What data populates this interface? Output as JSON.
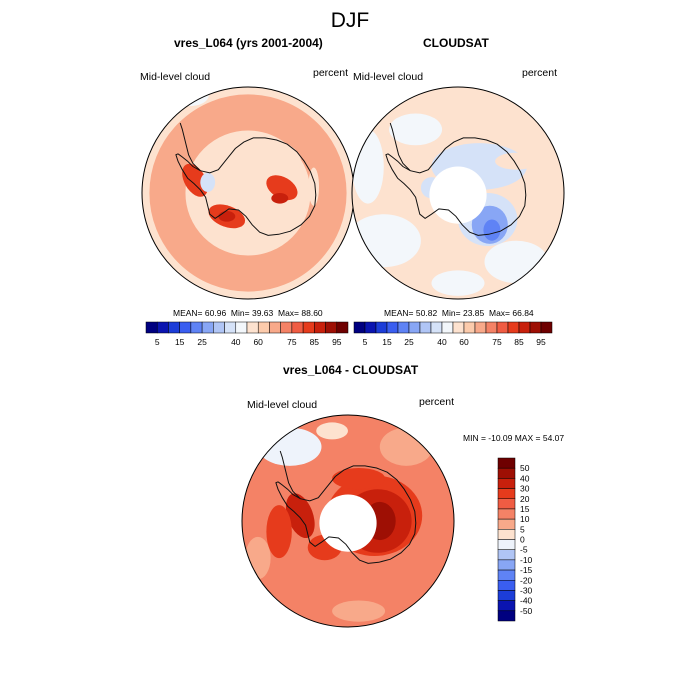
{
  "title": "DJF",
  "colors": {
    "outline": "#000000",
    "coast": "#111111",
    "hole": "#ffffff"
  },
  "panels": [
    {
      "id": "model",
      "title": "vres_L064 (yrs 2001-2004)",
      "left_label": "Mid-level cloud",
      "right_label": "percent",
      "stats": {
        "mean_label": "MEAN=",
        "mean": "60.96",
        "min_label": "Min=",
        "min": "39.63",
        "max_label": "Max=",
        "max": "88.60"
      }
    },
    {
      "id": "obs",
      "title": "CLOUDSAT",
      "left_label": "Mid-level cloud",
      "right_label": "percent",
      "stats": {
        "mean_label": "MEAN=",
        "mean": "50.82",
        "min_label": "Min=",
        "min": "23.85",
        "max_label": "Max=",
        "max": "66.84"
      }
    },
    {
      "id": "diff",
      "title": "vres_L064 - CLOUDSAT",
      "left_label": "Mid-level cloud",
      "right_label": "percent",
      "minmax_text": "MIN = -10.09 MAX =  54.07"
    }
  ],
  "chart_data": [
    {
      "type": "heatmap",
      "projection": "south polar stereographic",
      "title": "vres_L064 (yrs 2001-2004)",
      "variable": "Mid-level cloud",
      "units": "percent",
      "colorbar": {
        "levels": [
          5,
          10,
          15,
          20,
          25,
          30,
          35,
          40,
          50,
          60,
          65,
          70,
          75,
          80,
          85,
          90,
          95
        ],
        "tick_labels": [
          "5",
          "15",
          "25",
          "40",
          "60",
          "75",
          "85",
          "95"
        ],
        "colors": [
          "#000080",
          "#0a14b0",
          "#1c3dd8",
          "#3a5ef0",
          "#5f83f5",
          "#88a6f5",
          "#b0c5f5",
          "#d5e2f8",
          "#f3f7fb",
          "#fde2cf",
          "#fccbac",
          "#f8a98a",
          "#f48266",
          "#f05c43",
          "#e63b1c",
          "#c8200c",
          "#9e0f04",
          "#6e0000"
        ]
      },
      "summary": {
        "mean": 60.96,
        "min": 39.63,
        "max": 88.6
      },
      "pattern": "background 50-60 percent over ocean and continent; 65-75 percent ring around 60S; maxima 80-88 percent near Antarctic Peninsula, Weddell Sea and Dronning Maud Land; 35-40 percent patch over Bellingshausen coast"
    },
    {
      "type": "heatmap",
      "projection": "south polar stereographic",
      "title": "CLOUDSAT",
      "variable": "Mid-level cloud",
      "units": "percent",
      "colorbar": {
        "levels": [
          5,
          10,
          15,
          20,
          25,
          30,
          35,
          40,
          50,
          60,
          65,
          70,
          75,
          80,
          85,
          90,
          95
        ],
        "tick_labels": [
          "5",
          "15",
          "25",
          "40",
          "60",
          "75",
          "85",
          "95"
        ],
        "colors": [
          "#000080",
          "#0a14b0",
          "#1c3dd8",
          "#3a5ef0",
          "#5f83f5",
          "#88a6f5",
          "#b0c5f5",
          "#d5e2f8",
          "#f3f7fb",
          "#fde2cf",
          "#fccbac",
          "#f8a98a",
          "#f48266",
          "#f05c43",
          "#e63b1c",
          "#c8200c",
          "#9e0f04",
          "#6e0000"
        ]
      },
      "summary": {
        "mean": 50.82,
        "min": 23.85,
        "max": 66.84
      },
      "pattern": "mostly 40-60 percent; 30-40 percent over East Antarctica margin near 90E-120E and around the pole hole; no data poleward of about 82S"
    },
    {
      "type": "heatmap",
      "projection": "south polar stereographic",
      "title": "vres_L064 - CLOUDSAT",
      "variable": "Mid-level cloud",
      "units": "percent",
      "colorbar": {
        "levels": [
          -50,
          -40,
          -30,
          -20,
          -15,
          -10,
          -5,
          0,
          5,
          10,
          15,
          20,
          30,
          40,
          50
        ],
        "tick_labels": [
          "50",
          "40",
          "30",
          "20",
          "15",
          "10",
          "5",
          "0",
          "-5",
          "-10",
          "-15",
          "-20",
          "-30",
          "-40",
          "-50"
        ],
        "colors": [
          "#6e0000",
          "#9e0f04",
          "#c8200c",
          "#e63b1c",
          "#f05c43",
          "#f48266",
          "#f8a98a",
          "#fde2cf",
          "#eef3fb",
          "#b0c5f5",
          "#88a6f5",
          "#5f83f5",
          "#3a5ef0",
          "#1c3dd8",
          "#0a14b0",
          "#000080"
        ]
      },
      "summary": {
        "min": -10.09,
        "max": 54.07
      },
      "pattern": "positive 10-20 nearly everywhere; 30-50 over interior East Antarctica and along the Antarctic Peninsula; 0 to -5 patches near 60S in the Pacific sector"
    }
  ]
}
